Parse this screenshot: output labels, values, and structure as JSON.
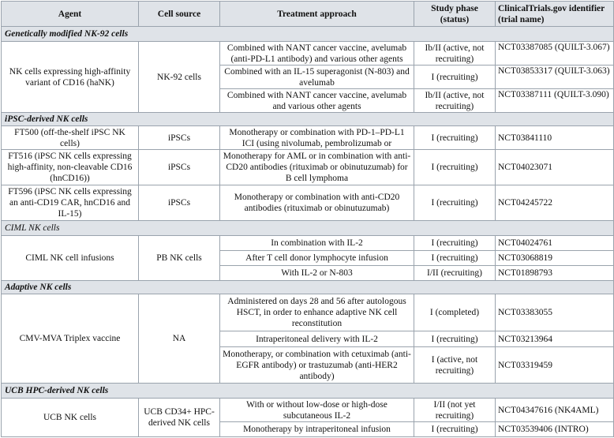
{
  "headers": {
    "agent": "Agent",
    "cell_source": "Cell source",
    "treatment": "Treatment approach",
    "phase": "Study phase (status)",
    "identifier": "ClinicalTrials.gov identifier (trial name)"
  },
  "sections": {
    "nk92": {
      "title": "Genetically modified NK-92 cells",
      "agent": "NK cells expressing high-affinity variant of CD16 (haNK)",
      "source": "NK-92 cells",
      "rows": [
        {
          "treatment": "Combined with NANT cancer vaccine, avelumab (anti-PD-L1 antibody) and various other agents",
          "phase": "Ib/II (active, not recruiting)",
          "id": "NCT03387085 (QUILT-3.067)"
        },
        {
          "treatment": "Combined with an IL-15 superagonist (N-803) and avelumab",
          "phase": "I (recruiting)",
          "id": "NCT03853317 (QUILT-3.063)"
        },
        {
          "treatment": "Combined with NANT cancer vaccine, avelumab and various other agents",
          "phase": "Ib/II (active, not recruiting)",
          "id": "NCT03387111 (QUILT-3.090)"
        }
      ]
    },
    "ipsc": {
      "title": "iPSC-derived NK cells",
      "rows": [
        {
          "agent": "FT500 (off-the-shelf iPSC NK cells)",
          "source": "iPSCs",
          "treatment": "Monotherapy or combination with PD-1–PD-L1 ICI (using nivolumab, pembrolizumab or",
          "phase": "I (recruiting)",
          "id": "NCT03841110"
        },
        {
          "agent": "FT516 (iPSC NK cells expressing high-affinity, non-cleavable CD16 (hnCD16))",
          "source": "iPSCs",
          "treatment": "Monotherapy for AML or in combination with anti-CD20 antibodies (rituximab or obinutuzumab) for B cell lymphoma",
          "phase": "I (recruiting)",
          "id": "NCT04023071"
        },
        {
          "agent": "FT596 (iPSC NK cells expressing an anti-CD19 CAR, hnCD16 and IL-15)",
          "source": "iPSCs",
          "treatment": "Monotherapy or combination with anti-CD20 antibodies (rituximab or obinutuzumab)",
          "phase": "I (recruiting)",
          "id": "NCT04245722"
        }
      ]
    },
    "ciml": {
      "title": "CIML NK cells",
      "agent": "CIML NK cell infusions",
      "source": "PB NK cells",
      "rows": [
        {
          "treatment": "In combination with IL-2",
          "phase": "I (recruiting)",
          "id": "NCT04024761"
        },
        {
          "treatment": "After T cell donor lymphocyte infusion",
          "phase": "I (recruiting)",
          "id": "NCT03068819"
        },
        {
          "treatment": "With IL-2 or N-803",
          "phase": "I/II (recruiting)",
          "id": "NCT01898793"
        }
      ]
    },
    "adaptive": {
      "title": "Adaptive NK cells",
      "agent": "CMV-MVA Triplex vaccine",
      "source": "NA",
      "rows": [
        {
          "treatment": "Administered on days 28 and 56 after autologous HSCT, in order to enhance adaptive NK cell reconstitution",
          "phase": "I (completed)",
          "id": "NCT03383055"
        },
        {
          "treatment": "Intraperitoneal delivery with IL-2",
          "phase": "I (recruiting)",
          "id": "NCT03213964"
        },
        {
          "treatment": "Monotherapy, or combination with cetuximab (anti-EGFR antibody) or trastuzumab (anti-HER2 antibody)",
          "phase": "I (active, not recruiting)",
          "id": "NCT03319459"
        }
      ]
    },
    "ucb": {
      "title": "UCB HPC-derived NK cells",
      "agent": "UCB NK cells",
      "source": "UCB CD34+ HPC-derived NK cells",
      "rows": [
        {
          "treatment": "With or without low-dose or high-dose subcutaneous IL-2",
          "phase": "I/II (not yet recruiting)",
          "id": "NCT04347616 (NK4AML)"
        },
        {
          "treatment": "Monotherapy by intraperitoneal infusion",
          "phase": "I (recruiting)",
          "id": "NCT03539406 (INTRO)"
        }
      ]
    }
  }
}
